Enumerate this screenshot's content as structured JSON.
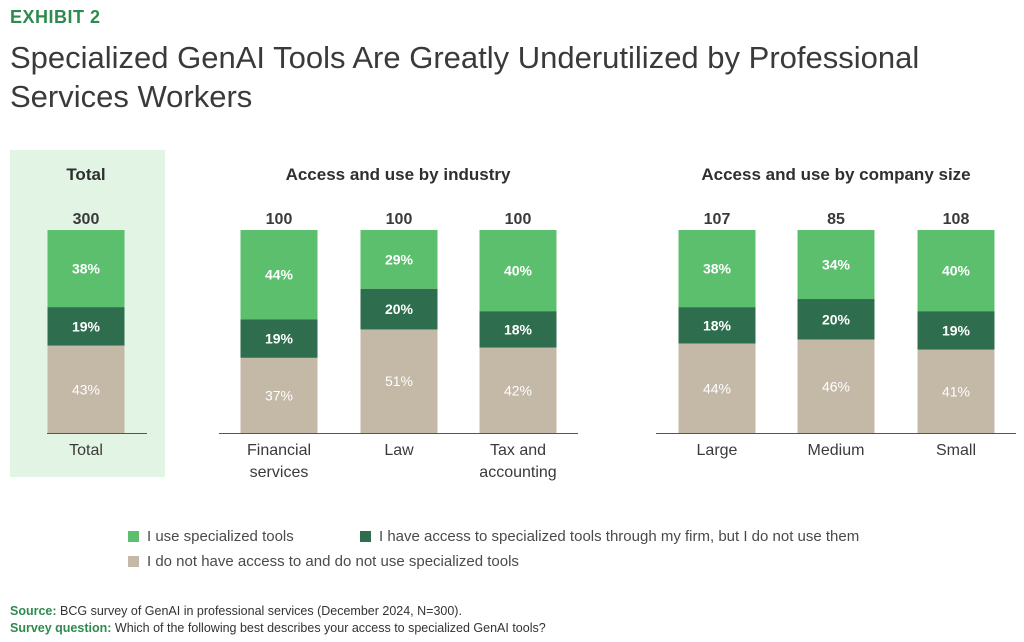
{
  "header": {
    "exhibit": "EXHIBIT 2",
    "title": "Specialized GenAI Tools Are Greatly Underutilized by Professional Services Workers"
  },
  "colors": {
    "use": "#5cbf6e",
    "access_no_use": "#2e6e4e",
    "no_access": "#c4b8a6",
    "total_bg": "#e2f5e5",
    "accent": "#2e8b4f"
  },
  "chart_data": [
    {
      "type": "bar",
      "stacked": true,
      "title": "Total",
      "categories": [
        "Total"
      ],
      "n": [
        "300"
      ],
      "series": [
        {
          "name": "I use specialized tools",
          "values": [
            38
          ]
        },
        {
          "name": "I have access to specialized tools through my firm, but I do not use them",
          "values": [
            19
          ]
        },
        {
          "name": "I do not have access to and do not use specialized tools",
          "values": [
            43
          ]
        }
      ]
    },
    {
      "type": "bar",
      "stacked": true,
      "title": "Access and use by industry",
      "categories": [
        "Financial services",
        "Law",
        "Tax and accounting"
      ],
      "n": [
        "100",
        "100",
        "100"
      ],
      "series": [
        {
          "name": "I use specialized tools",
          "values": [
            44,
            29,
            40
          ]
        },
        {
          "name": "I have access to specialized tools through my firm, but I do not use them",
          "values": [
            19,
            20,
            18
          ]
        },
        {
          "name": "I do not have access to and do not use specialized tools",
          "values": [
            37,
            51,
            42
          ]
        }
      ]
    },
    {
      "type": "bar",
      "stacked": true,
      "title": "Access and use by company size",
      "categories": [
        "Large",
        "Medium",
        "Small"
      ],
      "n": [
        "107",
        "85",
        "108"
      ],
      "series": [
        {
          "name": "I use specialized tools",
          "values": [
            38,
            34,
            40
          ]
        },
        {
          "name": "I have access to specialized tools through my firm, but I do not use them",
          "values": [
            18,
            20,
            19
          ]
        },
        {
          "name": "I do not have access to and do not use specialized tools",
          "values": [
            44,
            46,
            41
          ]
        }
      ]
    }
  ],
  "legend": [
    "I use specialized tools",
    "I have access to specialized tools through my firm, but I do not use them",
    "I do not have access to and do not use specialized tools"
  ],
  "footer": {
    "source_label": "Source:",
    "source_text": "BCG survey of GenAI in professional services (December 2024, N=300).",
    "question_label": "Survey question:",
    "question_text": "Which of the following best describes your access to specialized GenAI tools?"
  }
}
